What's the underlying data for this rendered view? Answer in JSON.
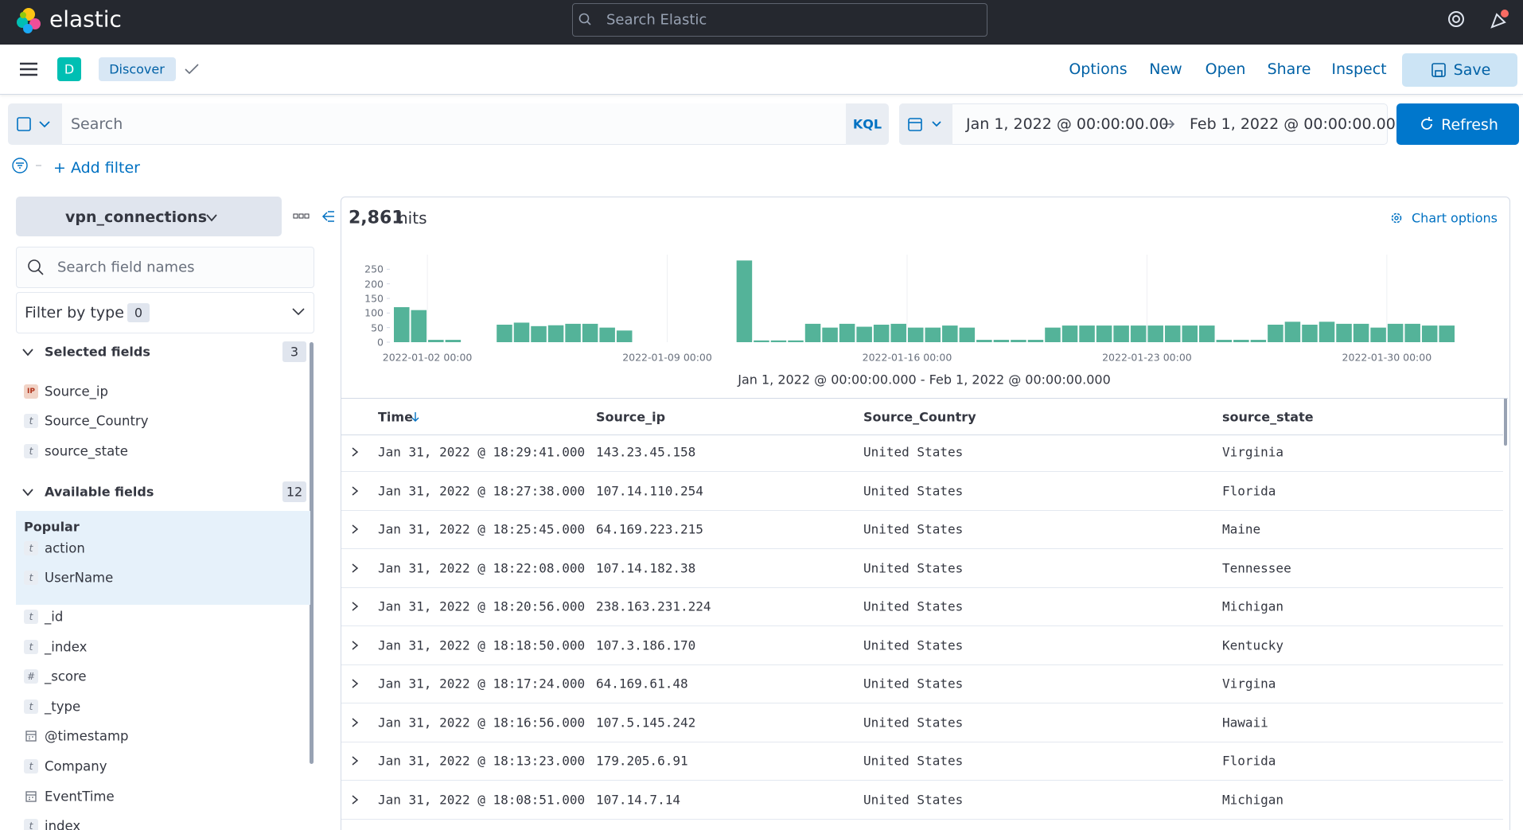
{
  "header": {
    "logo": "elastic",
    "search_placeholder": "Search Elastic"
  },
  "nav": {
    "app_badge": "D",
    "breadcrumb": "Discover",
    "menu": [
      "Options",
      "New",
      "Open",
      "Share",
      "Inspect"
    ],
    "save": "Save"
  },
  "query": {
    "placeholder": "Search",
    "language": "KQL",
    "start": "Jan 1, 2022 @ 00:00:00.00",
    "end": "Feb 1, 2022 @ 00:00:00.00",
    "refresh": "Refresh"
  },
  "add_filter": "+ Add filter",
  "sidebar": {
    "index_pattern": "vpn_connections",
    "search_placeholder": "Search field names",
    "filter_by_type": "Filter by type",
    "filter_count": 0,
    "selected_title": "Selected fields",
    "selected_count": 3,
    "selected": [
      {
        "icon": "IP",
        "name": "Source_ip"
      },
      {
        "icon": "t",
        "name": "Source_Country"
      },
      {
        "icon": "t",
        "name": "source_state"
      }
    ],
    "available_title": "Available fields",
    "available_count": 12,
    "popular_title": "Popular",
    "popular": [
      {
        "icon": "t",
        "name": "action"
      },
      {
        "icon": "t",
        "name": "UserName"
      }
    ],
    "other": [
      {
        "icon": "t",
        "name": "_id"
      },
      {
        "icon": "t",
        "name": "_index"
      },
      {
        "icon": "#",
        "name": "_score"
      },
      {
        "icon": "t",
        "name": "_type"
      },
      {
        "icon": null,
        "name": "@timestamp"
      },
      {
        "icon": "t",
        "name": "Company"
      },
      {
        "icon": null,
        "name": "EventTime"
      },
      {
        "icon": "t",
        "name": "index"
      }
    ]
  },
  "hits": {
    "count": "2,861",
    "label": "hits",
    "chart_options": "Chart options"
  },
  "chart_data": {
    "type": "bar",
    "color": "#54b399",
    "grid": true,
    "xlim": [
      "2022-01-01 00:00",
      "2022-02-01 00:00"
    ],
    "xticks": [
      "2022-01-02 00:00",
      "2022-01-09 00:00",
      "2022-01-16 00:00",
      "2022-01-23 00:00",
      "2022-01-30 00:00"
    ],
    "ylim": [
      0,
      300
    ],
    "yticks": [
      0,
      50,
      100,
      150,
      200,
      250
    ],
    "values": [
      120,
      110,
      8,
      8,
      0,
      0,
      60,
      67,
      55,
      58,
      63,
      63,
      50,
      40,
      0,
      0,
      0,
      0,
      0,
      0,
      280,
      6,
      6,
      6,
      63,
      50,
      63,
      53,
      60,
      63,
      50,
      50,
      57,
      50,
      8,
      8,
      8,
      8,
      50,
      57,
      57,
      57,
      57,
      57,
      57,
      57,
      57,
      57,
      8,
      8,
      8,
      60,
      70,
      60,
      70,
      63,
      63,
      50,
      63,
      63,
      57,
      57
    ],
    "x_label": "Jan 1, 2022 @ 00:00:00.000 - Feb 1, 2022 @ 00:00:00.000"
  },
  "table": {
    "columns": [
      "Time",
      "Source_ip",
      "Source_Country",
      "source_state"
    ],
    "rows": [
      [
        "Jan 31, 2022 @ 18:29:41.000",
        "143.23.45.158",
        "United States",
        "Virginia"
      ],
      [
        "Jan 31, 2022 @ 18:27:38.000",
        "107.14.110.254",
        "United States",
        "Florida"
      ],
      [
        "Jan 31, 2022 @ 18:25:45.000",
        "64.169.223.215",
        "United States",
        "Maine"
      ],
      [
        "Jan 31, 2022 @ 18:22:08.000",
        "107.14.182.38",
        "United States",
        "Tennessee"
      ],
      [
        "Jan 31, 2022 @ 18:20:56.000",
        "238.163.231.224",
        "United States",
        "Michigan"
      ],
      [
        "Jan 31, 2022 @ 18:18:50.000",
        "107.3.186.170",
        "United States",
        "Kentucky"
      ],
      [
        "Jan 31, 2022 @ 18:17:24.000",
        "64.169.61.48",
        "United States",
        "Virgina"
      ],
      [
        "Jan 31, 2022 @ 18:16:56.000",
        "107.5.145.242",
        "United States",
        "Hawaii"
      ],
      [
        "Jan 31, 2022 @ 18:13:23.000",
        "179.205.6.91",
        "United States",
        "Florida"
      ],
      [
        "Jan 31, 2022 @ 18:08:51.000",
        "107.14.7.14",
        "United States",
        "Michigan"
      ]
    ]
  }
}
